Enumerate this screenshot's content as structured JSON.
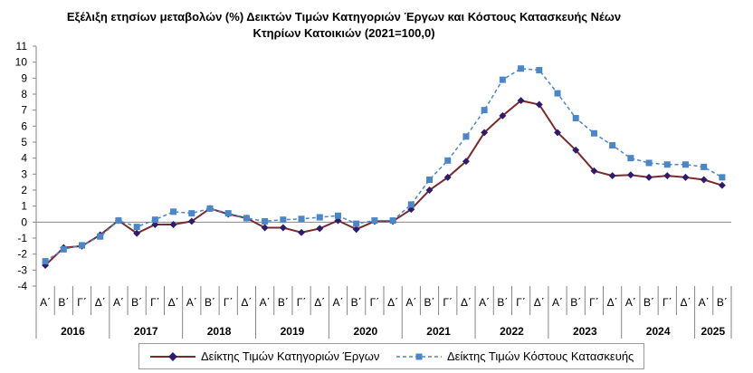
{
  "chart_data": {
    "type": "line",
    "title_line1": "Εξέλιξη ετησίων μεταβολών (%) Δεικτών Τιμών Κατηγοριών Έργων και Κόστους Κατασκευής Νέων",
    "title_line2": "Κτηρίων Κατοικιών (2021=100,0)",
    "ylim": [
      -4,
      11
    ],
    "yticks": [
      -4,
      -3,
      -2,
      -1,
      0,
      1,
      2,
      3,
      4,
      5,
      6,
      7,
      8,
      9,
      10,
      11
    ],
    "quarters": [
      "Α΄",
      "Β΄",
      "Γ΄",
      "Δ΄",
      "Α΄",
      "Β΄",
      "Γ΄",
      "Δ΄",
      "Α΄",
      "Β΄",
      "Γ΄",
      "Δ΄",
      "Α΄",
      "Β΄",
      "Γ΄",
      "Δ΄",
      "Α΄",
      "Β΄",
      "Γ΄",
      "Δ΄",
      "Α΄",
      "Β΄",
      "Γ΄",
      "Δ΄",
      "Α΄",
      "Β΄",
      "Γ΄",
      "Δ΄",
      "Α΄",
      "Β΄",
      "Γ΄",
      "Δ΄",
      "Α΄",
      "Β΄",
      "Γ΄",
      "Δ΄",
      "Α΄",
      "Β΄"
    ],
    "years": [
      {
        "label": "2016",
        "quarters": 4
      },
      {
        "label": "2017",
        "quarters": 4
      },
      {
        "label": "2018",
        "quarters": 4
      },
      {
        "label": "2019",
        "quarters": 4
      },
      {
        "label": "2020",
        "quarters": 4
      },
      {
        "label": "2021",
        "quarters": 4
      },
      {
        "label": "2022",
        "quarters": 4
      },
      {
        "label": "2023",
        "quarters": 4
      },
      {
        "label": "2024",
        "quarters": 4
      },
      {
        "label": "2025",
        "quarters": 2
      }
    ],
    "grid": false,
    "legend_position": "bottom",
    "series": [
      {
        "name": "Δείκτης Τιμών Κατηγοριών Έργων",
        "color": "#7b2b2b",
        "marker_color": "#2e1a6e",
        "marker": "diamond",
        "line_style": "solid",
        "values": [
          -2.7,
          -1.6,
          -1.5,
          -0.8,
          0.1,
          -0.7,
          -0.15,
          -0.15,
          0.05,
          0.85,
          0.5,
          0.25,
          -0.35,
          -0.35,
          -0.65,
          -0.4,
          0.1,
          -0.45,
          0.05,
          0.05,
          0.8,
          2.0,
          2.8,
          3.8,
          5.6,
          6.65,
          7.6,
          7.35,
          5.6,
          4.5,
          3.2,
          2.9,
          2.95,
          2.8,
          2.9,
          2.8,
          2.65,
          2.3
        ]
      },
      {
        "name": "Δείκτης Τιμών Κόστους Κατασκευής",
        "color": "#4a86c8",
        "marker_color": "#4a86c8",
        "marker": "square",
        "line_style": "dashed",
        "values": [
          -2.45,
          -1.7,
          -1.45,
          -0.9,
          0.1,
          -0.3,
          0.15,
          0.65,
          0.55,
          0.85,
          0.55,
          0.25,
          0.05,
          0.15,
          0.2,
          0.3,
          0.4,
          -0.1,
          0.1,
          0.1,
          1.1,
          2.65,
          3.85,
          5.35,
          7.0,
          8.9,
          9.6,
          9.5,
          8.05,
          6.5,
          5.55,
          4.8,
          4.0,
          3.7,
          3.6,
          3.6,
          3.45,
          2.8
        ]
      }
    ]
  }
}
